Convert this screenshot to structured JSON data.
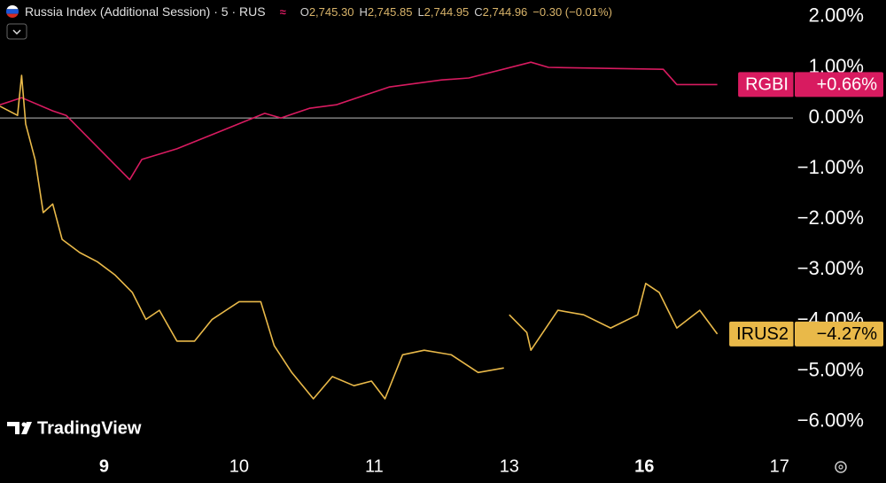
{
  "header": {
    "title": "Russia Index (Additional Session) · 5 · RUS",
    "ohlc": [
      {
        "label": "O",
        "value": "2,745.30"
      },
      {
        "label": "H",
        "value": "2,745.85"
      },
      {
        "label": "L",
        "value": "2,744.95"
      },
      {
        "label": "C",
        "value": "2,744.96"
      }
    ],
    "change": "−0.30 (−0.01%)"
  },
  "watermark": "TradingView",
  "chart_data": {
    "type": "line",
    "xlim": [
      -0.77,
      5.1
    ],
    "xticks": [
      {
        "value": 0,
        "label": "9",
        "bold": true
      },
      {
        "value": 1,
        "label": "10"
      },
      {
        "value": 2,
        "label": "11"
      },
      {
        "value": 3,
        "label": "13"
      },
      {
        "value": 4,
        "label": "16",
        "bold": true
      },
      {
        "value": 5,
        "label": "17"
      }
    ],
    "ylim": [
      -6.6,
      2.33
    ],
    "yticks": [
      {
        "value": 2,
        "label": "2.00%"
      },
      {
        "value": 1,
        "label": "1.00%"
      },
      {
        "value": 0,
        "label": "0.00%"
      },
      {
        "value": -1,
        "label": "−1.00%"
      },
      {
        "value": -2,
        "label": "−2.00%"
      },
      {
        "value": -3,
        "label": "−3.00%"
      },
      {
        "value": -4,
        "label": "−4.00%"
      },
      {
        "value": -5,
        "label": "−5.00%"
      },
      {
        "value": -6,
        "label": "−6.00%"
      }
    ],
    "zero_line": true,
    "series": [
      {
        "name": "RGBI",
        "color": "#d81b60",
        "label_text_color": "#ffffff",
        "x": [
          -0.77,
          -0.61,
          -0.38,
          -0.28,
          0.19,
          0.28,
          0.54,
          1.19,
          1.31,
          1.52,
          1.72,
          2.11,
          2.5,
          2.7,
          3.16,
          3.29,
          4.14,
          4.24,
          4.54
        ],
        "values": [
          0.26,
          0.4,
          0.14,
          0.05,
          -1.22,
          -0.82,
          -0.61,
          0.09,
          0,
          0.19,
          0.26,
          0.61,
          0.75,
          0.79,
          1.1,
          1.0,
          0.96,
          0.66,
          0.66
        ],
        "last_label": "+0.66%"
      },
      {
        "name": "IRUS2",
        "color": "#e9b949",
        "label_text_color": "#000000",
        "x": [
          -0.77,
          -0.64,
          -0.61,
          -0.58,
          -0.51,
          -0.45,
          -0.38,
          -0.31,
          -0.18,
          -0.05,
          0.08,
          0.21,
          0.31,
          0.41,
          0.54,
          0.67,
          0.8,
          1.0,
          1.16,
          1.26,
          1.39,
          1.55,
          1.69,
          1.85,
          1.98,
          2.08,
          2.21,
          2.37,
          2.57,
          2.77,
          2.96,
          2.98,
          3.0,
          3.13,
          3.16,
          3.36,
          3.55,
          3.75,
          3.95,
          4.01,
          4.11,
          4.24,
          4.41,
          4.54
        ],
        "values": [
          0.23,
          0.05,
          0.84,
          -0.12,
          -0.82,
          -1.87,
          -1.7,
          -2.4,
          -2.66,
          -2.84,
          -3.1,
          -3.45,
          -3.98,
          -3.8,
          -4.41,
          -4.41,
          -3.98,
          -3.63,
          -3.63,
          -4.5,
          -5.03,
          -5.55,
          -5.11,
          -5.29,
          -5.2,
          -5.55,
          -4.68,
          -4.59,
          -4.68,
          -5.03,
          -4.94,
          null,
          -3.89,
          -4.24,
          -4.59,
          -3.8,
          -3.89,
          -4.15,
          -3.89,
          -3.27,
          -3.45,
          -4.15,
          -3.8,
          -4.27
        ],
        "last_label": "−4.27%"
      }
    ]
  }
}
